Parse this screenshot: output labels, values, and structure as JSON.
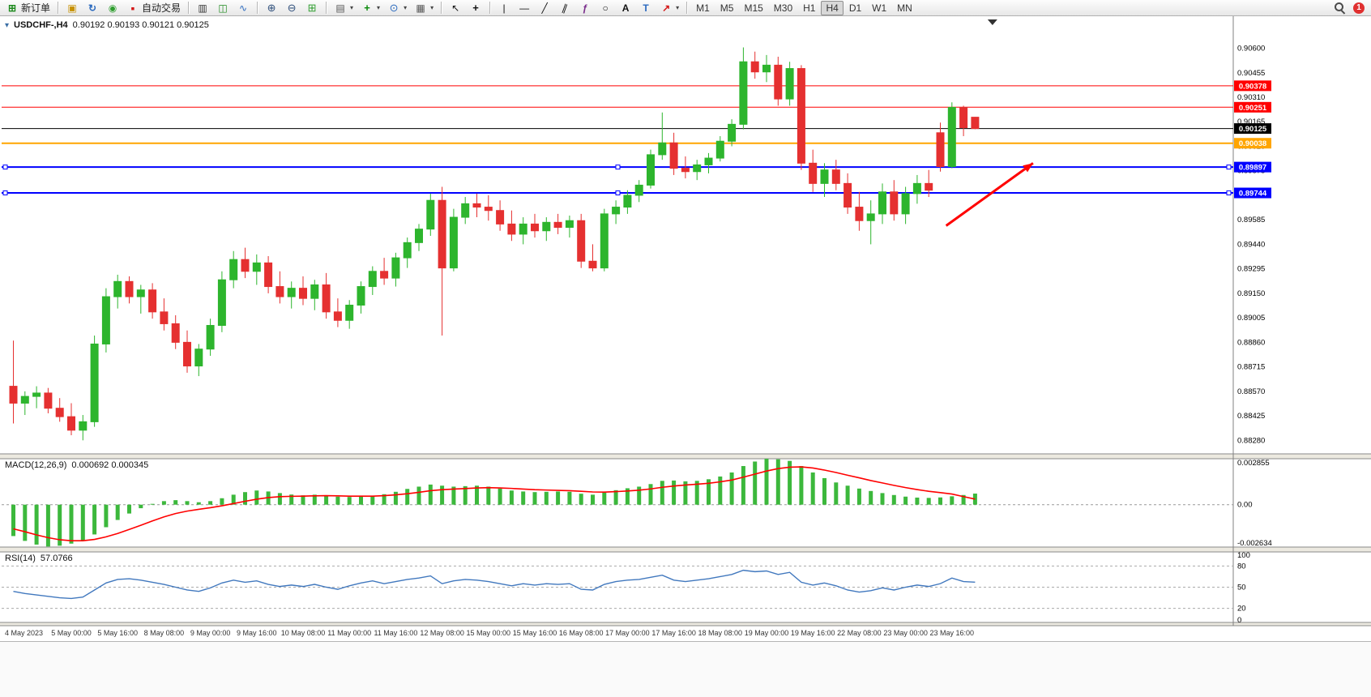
{
  "toolbar": {
    "badge": "1",
    "buttons": [
      {
        "name": "new-order",
        "icon": "new-order",
        "label": "新订单"
      },
      {
        "type": "sep"
      },
      {
        "name": "market-watch",
        "icon": "cube"
      },
      {
        "name": "refresh-data",
        "icon": "refresh"
      },
      {
        "name": "expert-advisors",
        "icon": "ea"
      },
      {
        "name": "autotrading",
        "icon": "autotrade",
        "label": "自动交易"
      },
      {
        "type": "sep"
      },
      {
        "name": "bar-chart-mode",
        "icon": "bars"
      },
      {
        "name": "candlestick-mode",
        "icon": "candles"
      },
      {
        "name": "line-chart-mode",
        "icon": "linechart"
      },
      {
        "type": "sep"
      },
      {
        "name": "zoom-in",
        "icon": "zoom-in"
      },
      {
        "name": "zoom-out",
        "icon": "zoom-out"
      },
      {
        "name": "tile-windows",
        "icon": "tile"
      },
      {
        "type": "sep"
      },
      {
        "name": "new-chart",
        "icon": "new-chart",
        "caret": true
      },
      {
        "name": "indicators",
        "icon": "indicators",
        "caret": true
      },
      {
        "name": "periods",
        "icon": "clock",
        "caret": true
      },
      {
        "name": "templates",
        "icon": "template",
        "caret": true
      },
      {
        "type": "sep"
      },
      {
        "name": "cursor",
        "icon": "cursor"
      },
      {
        "name": "crosshair",
        "icon": "crosshair"
      },
      {
        "type": "sep"
      },
      {
        "name": "vertical-line",
        "icon": "vline"
      },
      {
        "name": "horizontal-line",
        "icon": "hline"
      },
      {
        "name": "trendline",
        "icon": "trendline"
      },
      {
        "name": "equidistant-channel",
        "icon": "channel"
      },
      {
        "name": "fibonacci",
        "icon": "fibonacci"
      },
      {
        "name": "shapes",
        "icon": "ellipse"
      },
      {
        "name": "text",
        "icon": "text-a"
      },
      {
        "name": "text-label",
        "icon": "text-t"
      },
      {
        "name": "arrows",
        "icon": "arrow",
        "caret": true
      },
      {
        "type": "sep"
      },
      {
        "name": "tf-M1",
        "type": "tf",
        "label": "M1"
      },
      {
        "name": "tf-M5",
        "type": "tf",
        "label": "M5"
      },
      {
        "name": "tf-M15",
        "type": "tf",
        "label": "M15"
      },
      {
        "name": "tf-M30",
        "type": "tf",
        "label": "M30"
      },
      {
        "name": "tf-H1",
        "type": "tf",
        "label": "H1"
      },
      {
        "name": "tf-H4",
        "type": "tf",
        "label": "H4",
        "active": true
      },
      {
        "name": "tf-D1",
        "type": "tf",
        "label": "D1"
      },
      {
        "name": "tf-W1",
        "type": "tf",
        "label": "W1"
      },
      {
        "name": "tf-MN",
        "type": "tf",
        "label": "MN"
      }
    ]
  },
  "chart": {
    "title_symbol": "USDCHF-,H4",
    "quote_line": "0.90192 0.90193 0.90121 0.90125",
    "open": "0.90192",
    "high": "0.90193",
    "low": "0.90121",
    "close": "0.90125"
  },
  "chart_data": {
    "type": "candlestick",
    "symbol": "USDCHF",
    "timeframe": "H4",
    "candle_colors": {
      "bull": "#2DB52D",
      "bear": "#E53030"
    },
    "price_axis": {
      "view_top": 0.9078,
      "view_bottom": 0.882,
      "labels": [
        "0.90600",
        "0.90455",
        "0.90310",
        "0.90165",
        "0.90020",
        "0.89875",
        "0.89730",
        "0.89585",
        "0.89440",
        "0.89295",
        "0.89150",
        "0.89005",
        "0.88860",
        "0.88715",
        "0.88570",
        "0.88425",
        "0.88280"
      ]
    },
    "time_axis": {
      "labels": [
        [
          0,
          "4 May 2023"
        ],
        [
          5,
          "5 May 00:00"
        ],
        [
          9,
          "5 May 16:00"
        ],
        [
          13,
          "8 May 08:00"
        ],
        [
          17,
          "9 May 00:00"
        ],
        [
          21,
          "9 May 16:00"
        ],
        [
          25,
          "10 May 08:00"
        ],
        [
          29,
          "11 May 00:00"
        ],
        [
          33,
          "11 May 16:00"
        ],
        [
          37,
          "12 May 08:00"
        ],
        [
          41,
          "15 May 00:00"
        ],
        [
          45,
          "15 May 16:00"
        ],
        [
          49,
          "16 May 08:00"
        ],
        [
          53,
          "17 May 00:00"
        ],
        [
          57,
          "17 May 16:00"
        ],
        [
          61,
          "18 May 08:00"
        ],
        [
          65,
          "19 May 00:00"
        ],
        [
          69,
          "19 May 16:00"
        ],
        [
          73,
          "22 May 08:00"
        ],
        [
          77,
          "23 May 00:00"
        ],
        [
          81,
          "23 May 16:00"
        ]
      ]
    },
    "candles": [
      [
        0.886,
        0.8887,
        0.8838,
        0.885
      ],
      [
        0.885,
        0.8857,
        0.8843,
        0.8854
      ],
      [
        0.8854,
        0.886,
        0.8847,
        0.8856
      ],
      [
        0.8856,
        0.8859,
        0.8844,
        0.8847
      ],
      [
        0.8847,
        0.8853,
        0.8839,
        0.8842
      ],
      [
        0.8842,
        0.885,
        0.8831,
        0.8834
      ],
      [
        0.8834,
        0.8843,
        0.8828,
        0.8839
      ],
      [
        0.8839,
        0.889,
        0.8836,
        0.8885
      ],
      [
        0.8885,
        0.8918,
        0.888,
        0.8913
      ],
      [
        0.8913,
        0.8926,
        0.8906,
        0.8922
      ],
      [
        0.8922,
        0.8925,
        0.8909,
        0.8913
      ],
      [
        0.8913,
        0.892,
        0.8903,
        0.8917
      ],
      [
        0.8917,
        0.8921,
        0.89,
        0.8904
      ],
      [
        0.8904,
        0.8912,
        0.8893,
        0.8897
      ],
      [
        0.8897,
        0.8902,
        0.8882,
        0.8886
      ],
      [
        0.8886,
        0.8893,
        0.8868,
        0.8872
      ],
      [
        0.8872,
        0.8885,
        0.8866,
        0.8882
      ],
      [
        0.8882,
        0.89,
        0.8878,
        0.8896
      ],
      [
        0.8896,
        0.8928,
        0.8892,
        0.8923
      ],
      [
        0.8923,
        0.894,
        0.8918,
        0.8935
      ],
      [
        0.8935,
        0.8942,
        0.8924,
        0.8928
      ],
      [
        0.8928,
        0.8938,
        0.892,
        0.8933
      ],
      [
        0.8933,
        0.8937,
        0.8915,
        0.8919
      ],
      [
        0.8919,
        0.8928,
        0.8909,
        0.8913
      ],
      [
        0.8913,
        0.8922,
        0.8906,
        0.8918
      ],
      [
        0.8918,
        0.8925,
        0.8908,
        0.8912
      ],
      [
        0.8912,
        0.8923,
        0.8905,
        0.892
      ],
      [
        0.892,
        0.8927,
        0.89,
        0.8904
      ],
      [
        0.8904,
        0.8912,
        0.8895,
        0.8899
      ],
      [
        0.8899,
        0.8911,
        0.8894,
        0.8908
      ],
      [
        0.8908,
        0.8922,
        0.8903,
        0.8919
      ],
      [
        0.8919,
        0.8931,
        0.8914,
        0.8928
      ],
      [
        0.8928,
        0.8936,
        0.892,
        0.8924
      ],
      [
        0.8924,
        0.8939,
        0.8919,
        0.8936
      ],
      [
        0.8936,
        0.8948,
        0.893,
        0.8945
      ],
      [
        0.8945,
        0.8956,
        0.894,
        0.8953
      ],
      [
        0.8953,
        0.8974,
        0.8949,
        0.897
      ],
      [
        0.897,
        0.8978,
        0.889,
        0.893
      ],
      [
        0.893,
        0.8965,
        0.8928,
        0.896
      ],
      [
        0.896,
        0.8972,
        0.8956,
        0.8968
      ],
      [
        0.8968,
        0.8974,
        0.896,
        0.8966
      ],
      [
        0.8966,
        0.8973,
        0.8958,
        0.8964
      ],
      [
        0.8964,
        0.897,
        0.8952,
        0.8956
      ],
      [
        0.8956,
        0.8964,
        0.8946,
        0.895
      ],
      [
        0.895,
        0.896,
        0.8944,
        0.8956
      ],
      [
        0.8956,
        0.8962,
        0.8948,
        0.8952
      ],
      [
        0.8952,
        0.896,
        0.8946,
        0.8957
      ],
      [
        0.8957,
        0.8962,
        0.895,
        0.8954
      ],
      [
        0.8954,
        0.8961,
        0.8948,
        0.8958
      ],
      [
        0.8958,
        0.8962,
        0.893,
        0.8934
      ],
      [
        0.8934,
        0.8944,
        0.8928,
        0.893
      ],
      [
        0.893,
        0.8965,
        0.8928,
        0.8962
      ],
      [
        0.8962,
        0.897,
        0.8956,
        0.8966
      ],
      [
        0.8966,
        0.8976,
        0.8962,
        0.8973
      ],
      [
        0.8973,
        0.8982,
        0.8969,
        0.8979
      ],
      [
        0.8979,
        0.9,
        0.8977,
        0.8997
      ],
      [
        0.8997,
        0.9022,
        0.8994,
        0.9004
      ],
      [
        0.9004,
        0.901,
        0.8985,
        0.8989
      ],
      [
        0.8989,
        0.8996,
        0.8983,
        0.8987
      ],
      [
        0.8987,
        0.8994,
        0.8982,
        0.8991
      ],
      [
        0.8991,
        0.8998,
        0.8986,
        0.8995
      ],
      [
        0.8995,
        0.9008,
        0.8993,
        0.9005
      ],
      [
        0.9005,
        0.9018,
        0.9002,
        0.9015
      ],
      [
        0.9015,
        0.90605,
        0.9012,
        0.9052
      ],
      [
        0.9052,
        0.9058,
        0.9042,
        0.9046
      ],
      [
        0.9046,
        0.9056,
        0.904,
        0.905
      ],
      [
        0.905,
        0.9055,
        0.9026,
        0.903
      ],
      [
        0.903,
        0.9052,
        0.9026,
        0.9048
      ],
      [
        0.9048,
        0.905,
        0.8988,
        0.8992
      ],
      [
        0.8992,
        0.9,
        0.8975,
        0.898
      ],
      [
        0.898,
        0.8992,
        0.8972,
        0.8988
      ],
      [
        0.8988,
        0.8994,
        0.8976,
        0.898
      ],
      [
        0.898,
        0.8986,
        0.8962,
        0.8966
      ],
      [
        0.8966,
        0.8975,
        0.8952,
        0.8958
      ],
      [
        0.8958,
        0.897,
        0.8944,
        0.8962
      ],
      [
        0.8962,
        0.898,
        0.8956,
        0.8975
      ],
      [
        0.8975,
        0.8982,
        0.8958,
        0.8962
      ],
      [
        0.8962,
        0.8978,
        0.8956,
        0.8974
      ],
      [
        0.8974,
        0.8985,
        0.8968,
        0.898
      ],
      [
        0.898,
        0.8988,
        0.8972,
        0.8976
      ],
      [
        0.901,
        0.9016,
        0.8987,
        0.899
      ],
      [
        0.899,
        0.9028,
        0.8989,
        0.9025
      ],
      [
        0.9025,
        0.9026,
        0.9008,
        0.9013
      ],
      [
        0.90192,
        0.90193,
        0.90121,
        0.90125
      ]
    ],
    "hlines": [
      {
        "price": 0.90378,
        "label": "0.90378",
        "color": "#FF0000",
        "width": 1
      },
      {
        "price": 0.90251,
        "label": "0.90251",
        "color": "#FF0000",
        "width": 1
      },
      {
        "price": 0.90125,
        "label": "0.90125",
        "color": "#000000",
        "width": 1
      },
      {
        "price": 0.90038,
        "label": "0.90038",
        "color": "#FFA500",
        "width": 2
      },
      {
        "price": 0.89897,
        "label": "0.89897",
        "color": "#0000FF",
        "width": 2,
        "handles": true
      },
      {
        "price": 0.89744,
        "label": "0.89744",
        "color": "#0000FF",
        "width": 2,
        "handles": true
      }
    ],
    "arrow": {
      "from_index": 80.5,
      "from_price": 0.8955,
      "to_index": 88,
      "to_price": 0.8992,
      "color": "#FF0000"
    },
    "shift_marker_index": 84.5,
    "macd": {
      "title": "MACD(12,26,9)",
      "display_values": "0.000692 0.000345",
      "axis_labels": [
        "0.002855",
        "0.00",
        "-0.002634"
      ],
      "range_max": 0.002855,
      "range_min": -0.002634,
      "histogram_color": "#3CB83C",
      "signal_color": "#FF0000",
      "histogram": [
        -0.00195,
        -0.00225,
        -0.00248,
        -0.0026,
        -0.00255,
        -0.00242,
        -0.00222,
        -0.00185,
        -0.0014,
        -0.00095,
        -0.00055,
        -0.00022,
        5e-05,
        0.00022,
        0.00028,
        0.00022,
        0.00015,
        0.00022,
        0.0004,
        0.00062,
        0.00078,
        0.00088,
        0.00082,
        0.00072,
        0.00063,
        0.00058,
        0.00062,
        0.00058,
        0.0005,
        0.00048,
        0.00052,
        0.00055,
        0.00065,
        0.0008,
        0.00098,
        0.00112,
        0.00125,
        0.00118,
        0.00112,
        0.00115,
        0.00118,
        0.00112,
        0.001,
        0.00088,
        0.00082,
        0.00078,
        0.0008,
        0.00082,
        0.0008,
        0.00068,
        0.00062,
        0.00075,
        0.0009,
        0.00102,
        0.00112,
        0.00128,
        0.00148,
        0.0015,
        0.00145,
        0.00148,
        0.00158,
        0.00175,
        0.002,
        0.0024,
        0.00268,
        0.00285,
        0.00282,
        0.00272,
        0.0024,
        0.002,
        0.00165,
        0.00138,
        0.00118,
        0.001,
        0.00085,
        0.00072,
        0.0006,
        0.0005,
        0.00044,
        0.00042,
        0.00045,
        0.00052,
        0.0006,
        0.00069
      ],
      "signal": [
        -0.0015,
        -0.00168,
        -0.00188,
        -0.00205,
        -0.00218,
        -0.00224,
        -0.00224,
        -0.00216,
        -0.002,
        -0.00179,
        -0.00154,
        -0.00128,
        -0.00101,
        -0.00076,
        -0.00055,
        -0.0004,
        -0.00029,
        -0.00019,
        -7e-05,
        7e-05,
        0.00021,
        0.00034,
        0.00044,
        0.0005,
        0.00052,
        0.00053,
        0.00055,
        0.00056,
        0.00055,
        0.00053,
        0.00053,
        0.00053,
        0.00056,
        0.00061,
        0.00068,
        0.00077,
        0.00087,
        0.00093,
        0.00097,
        0.001,
        0.00104,
        0.00106,
        0.00104,
        0.00101,
        0.00097,
        0.00093,
        0.00091,
        0.00089,
        0.00087,
        0.00083,
        0.00079,
        0.00078,
        0.00081,
        0.00085,
        0.0009,
        0.00098,
        0.00108,
        0.00116,
        0.00122,
        0.00127,
        0.00133,
        0.00142,
        0.00153,
        0.00171,
        0.0019,
        0.00209,
        0.00224,
        0.00233,
        0.00235,
        0.00228,
        0.00215,
        0.002,
        0.00183,
        0.00167,
        0.0015,
        0.00135,
        0.0012,
        0.00106,
        0.00094,
        0.00083,
        0.00075,
        0.00066,
        0.0005,
        0.000345
      ]
    },
    "rsi": {
      "title": "RSI(14)",
      "display_value": "57.0766",
      "levels": [
        80,
        50,
        20
      ],
      "axis_labels": [
        "100",
        "80",
        "50",
        "20",
        "0"
      ],
      "line_color": "#4178BE",
      "series": [
        44,
        41,
        39,
        37,
        35,
        34,
        36,
        46,
        56,
        61,
        62,
        60,
        57,
        54,
        50,
        46,
        44,
        49,
        56,
        60,
        57,
        59,
        54,
        51,
        53,
        51,
        54,
        50,
        47,
        52,
        56,
        59,
        55,
        58,
        61,
        63,
        66,
        55,
        59,
        61,
        60,
        58,
        55,
        52,
        55,
        53,
        55,
        54,
        55,
        47,
        46,
        54,
        58,
        60,
        61,
        64,
        67,
        60,
        58,
        60,
        62,
        65,
        68,
        74,
        72,
        73,
        68,
        71,
        57,
        53,
        56,
        52,
        46,
        43,
        45,
        49,
        46,
        50,
        53,
        51,
        55,
        63,
        58,
        57.1
      ]
    }
  }
}
